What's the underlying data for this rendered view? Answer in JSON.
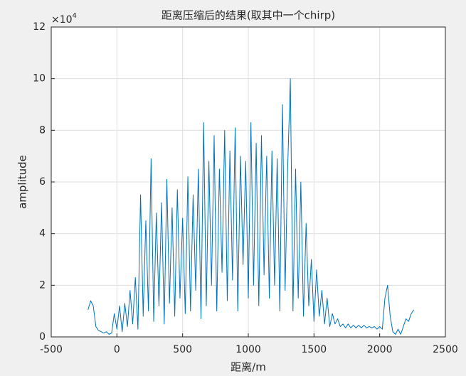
{
  "chart_data": {
    "type": "line",
    "title": "距离压缩后的结果(取其中一个chirp)",
    "x_label": "距离/m",
    "y_label": "amplitude",
    "y_exponent_label": "×10",
    "y_exponent_power": "4",
    "xlim": [
      -500,
      2500
    ],
    "xticks": [
      -500,
      0,
      500,
      1000,
      1500,
      2000,
      2500
    ],
    "ylim": [
      0,
      12
    ],
    "yticks": [
      0,
      2,
      4,
      6,
      8,
      10,
      12
    ],
    "grid": true,
    "x": [
      -220,
      -200,
      -180,
      -160,
      -140,
      -120,
      -100,
      -80,
      -60,
      -40,
      -20,
      0,
      20,
      40,
      60,
      80,
      100,
      120,
      140,
      160,
      180,
      200,
      220,
      240,
      260,
      280,
      300,
      320,
      340,
      360,
      380,
      400,
      420,
      440,
      460,
      480,
      500,
      520,
      540,
      560,
      580,
      600,
      620,
      640,
      660,
      680,
      700,
      720,
      740,
      760,
      780,
      800,
      820,
      840,
      860,
      880,
      900,
      920,
      940,
      960,
      980,
      1000,
      1020,
      1040,
      1060,
      1080,
      1100,
      1120,
      1140,
      1160,
      1180,
      1200,
      1220,
      1240,
      1260,
      1280,
      1300,
      1320,
      1340,
      1360,
      1380,
      1400,
      1420,
      1440,
      1460,
      1480,
      1500,
      1520,
      1540,
      1560,
      1580,
      1600,
      1620,
      1640,
      1660,
      1680,
      1700,
      1720,
      1740,
      1760,
      1780,
      1800,
      1820,
      1840,
      1860,
      1880,
      1900,
      1920,
      1940,
      1960,
      1980,
      2000,
      2020,
      2040,
      2060,
      2080,
      2100,
      2120,
      2140,
      2160,
      2180,
      2200,
      2220,
      2240,
      2260
    ],
    "series": [
      {
        "color": "#0072BD",
        "values": [
          1.05,
          1.4,
          1.2,
          0.4,
          0.25,
          0.2,
          0.15,
          0.2,
          0.1,
          0.15,
          0.9,
          0.3,
          1.2,
          0.2,
          1.3,
          0.4,
          1.8,
          0.5,
          2.3,
          0.3,
          5.5,
          0.8,
          4.5,
          1.0,
          6.9,
          0.6,
          4.8,
          1.2,
          5.2,
          0.5,
          6.1,
          1.3,
          5.0,
          0.8,
          5.7,
          1.5,
          4.6,
          0.9,
          6.2,
          1.0,
          5.5,
          1.8,
          6.5,
          0.7,
          8.3,
          1.2,
          6.8,
          2.0,
          7.8,
          1.0,
          6.5,
          2.5,
          8.0,
          1.4,
          7.2,
          2.2,
          8.1,
          1.0,
          7.0,
          2.8,
          6.8,
          1.5,
          8.3,
          2.0,
          7.5,
          1.2,
          7.8,
          2.4,
          7.0,
          1.5,
          7.2,
          2.0,
          6.9,
          1.0,
          9.0,
          1.8,
          6.6,
          10.0,
          1.0,
          6.5,
          1.5,
          6.0,
          0.8,
          4.4,
          1.2,
          3.0,
          0.6,
          2.6,
          0.8,
          1.8,
          0.5,
          1.5,
          0.4,
          0.9,
          0.5,
          0.7,
          0.4,
          0.5,
          0.35,
          0.5,
          0.35,
          0.45,
          0.35,
          0.45,
          0.35,
          0.45,
          0.35,
          0.4,
          0.35,
          0.4,
          0.3,
          0.4,
          0.3,
          1.5,
          2.0,
          0.8,
          0.2,
          0.1,
          0.3,
          0.1,
          0.4,
          0.7,
          0.6,
          0.9,
          1.05
        ]
      }
    ]
  }
}
